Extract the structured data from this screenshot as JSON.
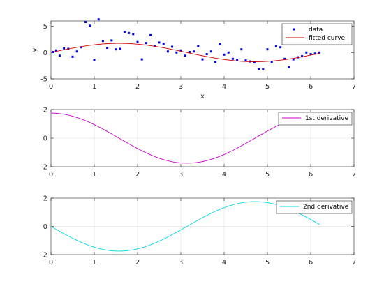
{
  "chart_data": [
    {
      "type": "scatter+line",
      "xlabel": "x",
      "ylabel": "y",
      "xlim": [
        0,
        7
      ],
      "ylim": [
        -5,
        6
      ],
      "xticks": [
        0,
        1,
        2,
        3,
        4,
        5,
        6,
        7
      ],
      "yticks": [
        -5,
        0,
        5
      ],
      "grid": false,
      "legend_position": "top-right",
      "series": [
        {
          "name": "data",
          "kind": "points",
          "color": "#0000ff",
          "x": [
            0.05,
            0.12,
            0.2,
            0.3,
            0.4,
            0.5,
            0.6,
            0.7,
            0.8,
            0.9,
            1.0,
            1.1,
            1.2,
            1.3,
            1.4,
            1.5,
            1.6,
            1.7,
            1.8,
            1.9,
            2.0,
            2.1,
            2.2,
            2.3,
            2.4,
            2.5,
            2.6,
            2.7,
            2.8,
            2.9,
            3.0,
            3.1,
            3.2,
            3.3,
            3.4,
            3.5,
            3.6,
            3.7,
            3.8,
            3.9,
            4.0,
            4.1,
            4.2,
            4.3,
            4.4,
            4.5,
            4.6,
            4.7,
            4.8,
            4.9,
            5.0,
            5.1,
            5.2,
            5.3,
            5.4,
            5.5,
            5.6,
            5.7,
            5.8,
            5.9,
            6.0,
            6.1,
            6.2
          ],
          "y": [
            0.1,
            0.4,
            -0.6,
            0.8,
            0.7,
            -0.8,
            0.2,
            1.0,
            5.8,
            5.1,
            -1.4,
            6.3,
            2.2,
            0.9,
            2.3,
            0.6,
            0.7,
            3.9,
            3.7,
            3.5,
            2.0,
            -1.3,
            1.8,
            3.3,
            1.3,
            1.9,
            1.7,
            0.2,
            1.1,
            0.0,
            0.4,
            -0.6,
            0.1,
            0.2,
            1.2,
            -1.3,
            -0.3,
            0.2,
            -1.8,
            1.6,
            -0.4,
            0.0,
            -1.2,
            -1.4,
            0.6,
            -1.5,
            -1.7,
            -1.9,
            -3.2,
            -3.2,
            0.6,
            -1.8,
            1.2,
            1.0,
            -1.2,
            -2.8,
            -1.3,
            -0.9,
            -0.7,
            0.0,
            -0.3,
            -0.2,
            0.0
          ]
        },
        {
          "name": "fitted curve",
          "kind": "line",
          "color": "#cc0000",
          "function": "1.75*sin(x)",
          "x_range": [
            0,
            6.2
          ]
        }
      ]
    },
    {
      "type": "line",
      "xlim": [
        0,
        7
      ],
      "ylim": [
        -2,
        2
      ],
      "xticks": [
        0,
        1,
        2,
        3,
        4,
        5,
        6,
        7
      ],
      "yticks": [
        -2,
        0,
        2
      ],
      "grid": true,
      "legend_position": "top-right",
      "series": [
        {
          "name": "1st derivative",
          "kind": "line",
          "color": "#cc00cc",
          "function": "1.75*cos(x)",
          "x_range": [
            0,
            6.2
          ]
        }
      ]
    },
    {
      "type": "line",
      "xlim": [
        0,
        7
      ],
      "ylim": [
        -2,
        2
      ],
      "xticks": [
        0,
        1,
        2,
        3,
        4,
        5,
        6,
        7
      ],
      "yticks": [
        -2,
        0,
        2
      ],
      "grid": true,
      "legend_position": "top-right",
      "series": [
        {
          "name": "2nd derivative",
          "kind": "line",
          "color": "#00dddd",
          "function": "-1.75*sin(x)",
          "x_range": [
            0,
            6.2
          ]
        }
      ]
    }
  ]
}
